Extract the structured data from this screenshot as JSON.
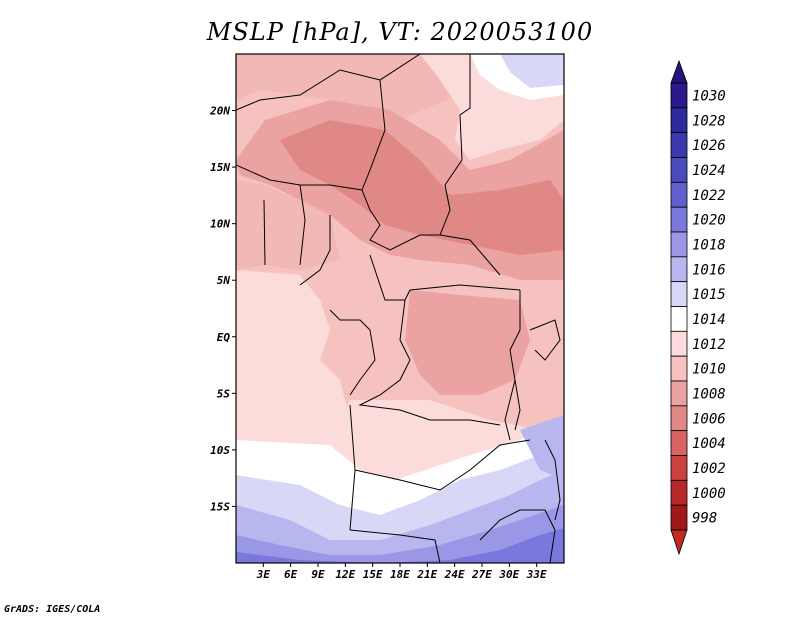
{
  "title": "MSLP [hPa], VT: 2020053100",
  "footer": "GrADS: IGES/COLA",
  "map": {
    "projection": "lat-lon",
    "lon_range": [
      0,
      36
    ],
    "lat_range": [
      -20,
      25
    ],
    "lat_ticks": [
      {
        "value": 20,
        "label": "20N"
      },
      {
        "value": 15,
        "label": "15N"
      },
      {
        "value": 10,
        "label": "10N"
      },
      {
        "value": 5,
        "label": "5N"
      },
      {
        "value": 0,
        "label": "EQ"
      },
      {
        "value": -5,
        "label": "5S"
      },
      {
        "value": -10,
        "label": "10S"
      },
      {
        "value": -15,
        "label": "15S"
      }
    ],
    "lon_ticks": [
      {
        "value": 3,
        "label": "3E"
      },
      {
        "value": 6,
        "label": "6E"
      },
      {
        "value": 9,
        "label": "9E"
      },
      {
        "value": 12,
        "label": "12E"
      },
      {
        "value": 15,
        "label": "15E"
      },
      {
        "value": 18,
        "label": "18E"
      },
      {
        "value": 21,
        "label": "21E"
      },
      {
        "value": 24,
        "label": "24E"
      },
      {
        "value": 27,
        "label": "27E"
      },
      {
        "value": 30,
        "label": "30E"
      },
      {
        "value": 33,
        "label": "33E"
      }
    ]
  },
  "colorbar": {
    "levels": [
      {
        "label": "1030",
        "color": "#2a1a8c"
      },
      {
        "label": "1028",
        "color": "#2d2a9e"
      },
      {
        "label": "1026",
        "color": "#3a3aae"
      },
      {
        "label": "1024",
        "color": "#4b4bbd"
      },
      {
        "label": "1022",
        "color": "#6060cc"
      },
      {
        "label": "1020",
        "color": "#7a78dc"
      },
      {
        "label": "1018",
        "color": "#9a98e6"
      },
      {
        "label": "1016",
        "color": "#b8b6ee"
      },
      {
        "label": "1015",
        "color": "#d8d8f6"
      },
      {
        "label": "1014",
        "color": "#ffffff"
      },
      {
        "label": "1012",
        "color": "#fbdcda"
      },
      {
        "label": "1010",
        "color": "#f6c2c0"
      },
      {
        "label": "1008",
        "color": "#eba3a1"
      },
      {
        "label": "1006",
        "color": "#e08886"
      },
      {
        "label": "1004",
        "color": "#d86464"
      },
      {
        "label": "1002",
        "color": "#cc4040"
      },
      {
        "label": "1000",
        "color": "#b82828"
      },
      {
        "label": "998",
        "color": "#a01818"
      }
    ],
    "top_triangle_color": "#22147a",
    "bottom_triangle_color": "#c02a20"
  }
}
